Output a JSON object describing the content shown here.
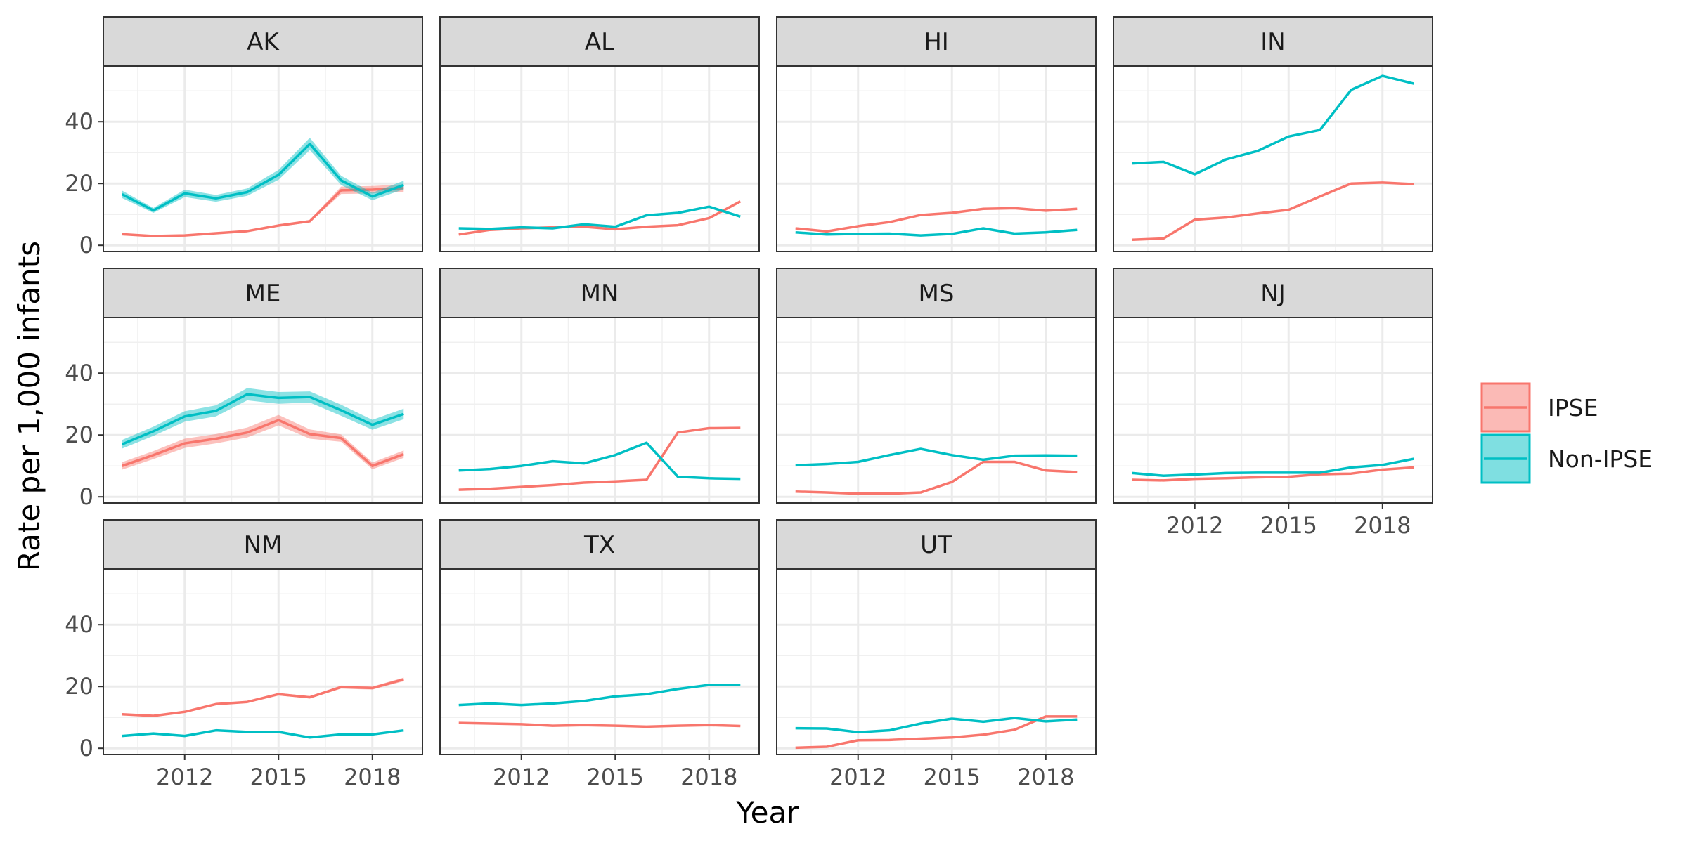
{
  "chart_data": {
    "type": "line",
    "xlabel": "Year",
    "ylabel": "Rate per 1,000 infants",
    "x": [
      2010,
      2011,
      2012,
      2013,
      2014,
      2015,
      2016,
      2017,
      2018,
      2019
    ],
    "xlim": [
      2009.4,
      2019.6
    ],
    "ylim": [
      -2,
      58
    ],
    "x_ticks": [
      "2012",
      "2015",
      "2018"
    ],
    "y_ticks": [
      "0",
      "20",
      "40"
    ],
    "grid": true,
    "legend": {
      "position": "right",
      "entries": [
        "IPSE",
        "Non-IPSE"
      ]
    },
    "colors": {
      "IPSE": "#F8766D",
      "Non-IPSE": "#00BFC4"
    },
    "facets": [
      {
        "state": "AK",
        "series": [
          {
            "name": "IPSE",
            "values": [
              3.6,
              3.0,
              3.2,
              3.9,
              4.6,
              6.4,
              7.8,
              17.8,
              18.0,
              18.5
            ],
            "band": [
              0.3,
              0.3,
              0.3,
              0.3,
              0.3,
              0.4,
              0.4,
              1.2,
              1.2,
              1.2
            ]
          },
          {
            "name": "Non-IPSE",
            "values": [
              16.5,
              11.3,
              16.8,
              15.2,
              17.2,
              22.8,
              32.8,
              21.0,
              15.8,
              19.5
            ],
            "band": [
              1.2,
              0.8,
              1.2,
              1.1,
              1.2,
              1.6,
              2.0,
              1.5,
              1.2,
              1.4
            ]
          }
        ]
      },
      {
        "state": "AL",
        "series": [
          {
            "name": "IPSE",
            "values": [
              3.5,
              5.0,
              5.5,
              5.8,
              6.0,
              5.2,
              6.0,
              6.5,
              8.8,
              14.2
            ]
          },
          {
            "name": "Non-IPSE",
            "values": [
              5.5,
              5.3,
              5.8,
              5.5,
              6.8,
              6.0,
              9.7,
              10.5,
              12.5,
              9.3
            ]
          }
        ]
      },
      {
        "state": "HI",
        "series": [
          {
            "name": "IPSE",
            "values": [
              5.5,
              4.5,
              6.2,
              7.5,
              9.8,
              10.5,
              11.8,
              12.0,
              11.2,
              11.8
            ]
          },
          {
            "name": "Non-IPSE",
            "values": [
              4.2,
              3.5,
              3.7,
              3.8,
              3.2,
              3.7,
              5.5,
              3.8,
              4.2,
              5.0
            ]
          }
        ]
      },
      {
        "state": "IN",
        "series": [
          {
            "name": "IPSE",
            "values": [
              1.8,
              2.2,
              8.3,
              9.0,
              10.3,
              11.5,
              15.8,
              20.0,
              20.3,
              19.8
            ]
          },
          {
            "name": "Non-IPSE",
            "values": [
              26.5,
              27.0,
              23.0,
              27.8,
              30.5,
              35.2,
              37.3,
              50.3,
              54.8,
              52.3
            ]
          }
        ]
      },
      {
        "state": "ME",
        "series": [
          {
            "name": "IPSE",
            "values": [
              10.0,
              13.5,
              17.3,
              18.8,
              20.8,
              24.8,
              20.3,
              19.0,
              10.0,
              13.8
            ],
            "band": [
              1.2,
              1.3,
              1.5,
              1.5,
              1.6,
              1.7,
              1.5,
              1.2,
              1.1,
              1.2
            ]
          },
          {
            "name": "Non-IPSE",
            "values": [
              17.0,
              21.2,
              26.0,
              27.8,
              33.2,
              32.0,
              32.3,
              28.0,
              23.3,
              26.8
            ],
            "band": [
              1.4,
              1.5,
              1.7,
              1.8,
              2.0,
              1.9,
              1.8,
              1.8,
              1.6,
              1.7
            ]
          }
        ]
      },
      {
        "state": "MN",
        "series": [
          {
            "name": "IPSE",
            "values": [
              2.3,
              2.6,
              3.2,
              3.8,
              4.6,
              5.0,
              5.5,
              20.8,
              22.2,
              22.3
            ]
          },
          {
            "name": "Non-IPSE",
            "values": [
              8.5,
              9.0,
              10.0,
              11.5,
              10.8,
              13.5,
              17.5,
              6.5,
              6.0,
              5.8
            ]
          }
        ]
      },
      {
        "state": "MS",
        "series": [
          {
            "name": "IPSE",
            "values": [
              1.7,
              1.4,
              1.0,
              1.0,
              1.4,
              4.8,
              11.3,
              11.3,
              8.5,
              8.0
            ]
          },
          {
            "name": "Non-IPSE",
            "values": [
              10.2,
              10.6,
              11.3,
              13.5,
              15.5,
              13.5,
              12.0,
              13.3,
              13.4,
              13.3
            ]
          }
        ]
      },
      {
        "state": "NJ",
        "series": [
          {
            "name": "IPSE",
            "values": [
              5.5,
              5.3,
              5.8,
              6.0,
              6.3,
              6.5,
              7.3,
              7.5,
              8.8,
              9.5
            ]
          },
          {
            "name": "Non-IPSE",
            "values": [
              7.7,
              6.8,
              7.2,
              7.7,
              7.8,
              7.8,
              7.8,
              9.5,
              10.3,
              12.3
            ]
          }
        ]
      },
      {
        "state": "NM",
        "series": [
          {
            "name": "IPSE",
            "values": [
              11.0,
              10.5,
              11.8,
              14.3,
              15.0,
              17.5,
              16.5,
              19.8,
              19.5,
              22.3
            ],
            "band": [
              0.3,
              0.3,
              0.3,
              0.3,
              0.3,
              0.4,
              0.4,
              0.5,
              0.5,
              0.6
            ]
          },
          {
            "name": "Non-IPSE",
            "values": [
              4.0,
              4.8,
              4.0,
              5.8,
              5.3,
              5.3,
              3.5,
              4.5,
              4.5,
              5.8
            ]
          }
        ]
      },
      {
        "state": "TX",
        "series": [
          {
            "name": "IPSE",
            "values": [
              8.2,
              8.0,
              7.8,
              7.3,
              7.5,
              7.3,
              7.0,
              7.3,
              7.5,
              7.2
            ]
          },
          {
            "name": "Non-IPSE",
            "values": [
              14.0,
              14.5,
              14.0,
              14.5,
              15.3,
              16.8,
              17.5,
              19.2,
              20.5,
              20.5
            ]
          }
        ]
      },
      {
        "state": "UT",
        "series": [
          {
            "name": "IPSE",
            "values": [
              0.2,
              0.5,
              2.6,
              2.7,
              3.1,
              3.5,
              4.4,
              6.0,
              10.3,
              10.3
            ]
          },
          {
            "name": "Non-IPSE",
            "values": [
              6.5,
              6.4,
              5.2,
              5.8,
              8.0,
              9.6,
              8.6,
              9.8,
              8.7,
              9.3
            ]
          }
        ]
      }
    ]
  }
}
